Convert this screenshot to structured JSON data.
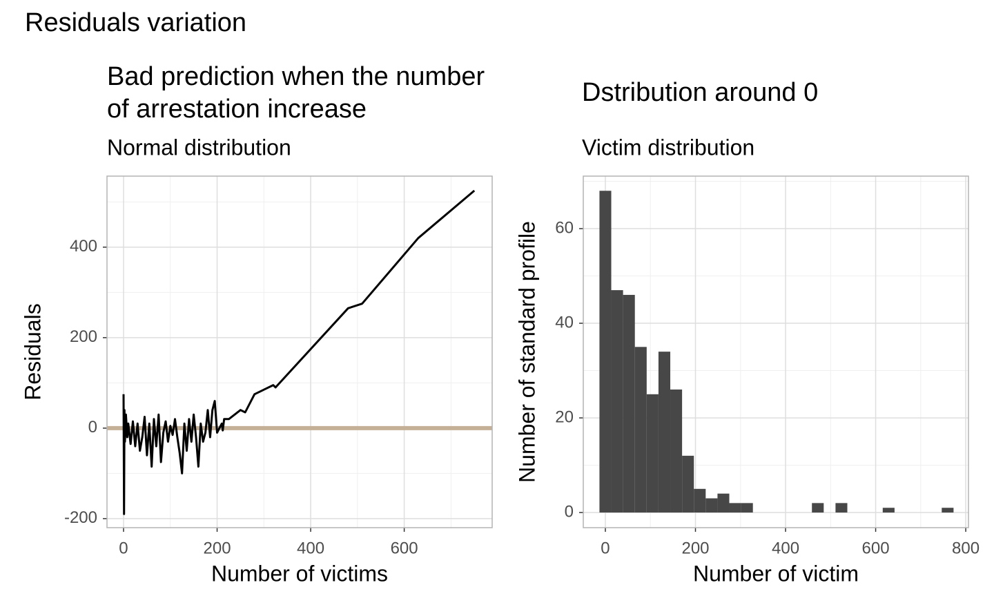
{
  "title": "Residuals variation",
  "chart_data": [
    {
      "type": "line",
      "title": [
        "Bad prediction when the number",
        "of arrestation increase"
      ],
      "subtitle": "Normal distribution",
      "x_label": "Number of victims",
      "y_label": "Residuals",
      "color": "#000000",
      "x": [
        0,
        1,
        2,
        3,
        5,
        8,
        10,
        15,
        20,
        25,
        30,
        35,
        40,
        45,
        50,
        55,
        60,
        65,
        70,
        75,
        80,
        85,
        90,
        95,
        100,
        105,
        110,
        115,
        120,
        125,
        130,
        135,
        140,
        145,
        150,
        155,
        160,
        165,
        170,
        175,
        180,
        185,
        190,
        195,
        200,
        210,
        212,
        215,
        225,
        250,
        260,
        280,
        300,
        320,
        325,
        480,
        510,
        630,
        750
      ],
      "values": [
        75,
        -190,
        40,
        -30,
        30,
        -20,
        10,
        -35,
        15,
        -40,
        10,
        -50,
        -20,
        25,
        -60,
        10,
        -85,
        20,
        -40,
        30,
        -75,
        -10,
        15,
        -30,
        5,
        -15,
        20,
        -20,
        -55,
        -100,
        10,
        -50,
        20,
        -30,
        30,
        -20,
        -85,
        10,
        -30,
        -10,
        40,
        -20,
        40,
        60,
        -10,
        10,
        -5,
        20,
        20,
        40,
        35,
        75,
        85,
        95,
        90,
        265,
        275,
        420,
        525
      ],
      "hline": 0,
      "hline_color": "#c4b096",
      "xlim": [
        -35.4,
        788
      ],
      "ylim": [
        -220,
        557
      ],
      "xticks": [
        0,
        200,
        400,
        600
      ],
      "yticks": [
        -200,
        0,
        200,
        400
      ],
      "x_minor_ticks": [
        100,
        300,
        500,
        700
      ],
      "y_minor_ticks": [
        -100,
        100,
        300,
        500
      ],
      "grid": true
    },
    {
      "type": "histogram",
      "title": [
        "Dstribution around 0"
      ],
      "subtitle": "Victim distribution",
      "x_label": "Number of victim",
      "y_label": "Number of standard profile",
      "color": "#474747",
      "bins": [
        -13.1,
        13.1,
        39.3,
        65.5,
        91.7,
        117.9,
        144.1,
        170.3,
        196.5,
        222.7,
        248.9,
        275.1,
        301.3,
        327.5,
        353.7,
        379.9,
        406.1,
        432.3,
        458.5,
        484.7,
        510.9,
        537.1,
        563.3,
        589.5,
        615.7,
        641.9,
        668.1,
        694.3,
        720.5,
        746.7,
        772.9
      ],
      "counts": [
        68,
        47,
        46,
        35,
        25,
        34,
        26,
        12,
        5,
        3,
        4,
        2,
        2,
        0,
        0,
        0,
        0,
        0,
        2,
        0,
        2,
        0,
        0,
        0,
        1,
        0,
        0,
        0,
        0,
        1
      ],
      "xlim": [
        -49,
        806
      ],
      "ylim": [
        -3.2,
        71.1
      ],
      "xticks": [
        0,
        200,
        400,
        600,
        800
      ],
      "yticks": [
        0,
        20,
        40,
        60
      ],
      "x_minor_ticks": [
        100,
        300,
        500,
        700
      ],
      "y_minor_ticks": [
        10,
        30,
        50,
        70
      ],
      "grid": true
    }
  ]
}
